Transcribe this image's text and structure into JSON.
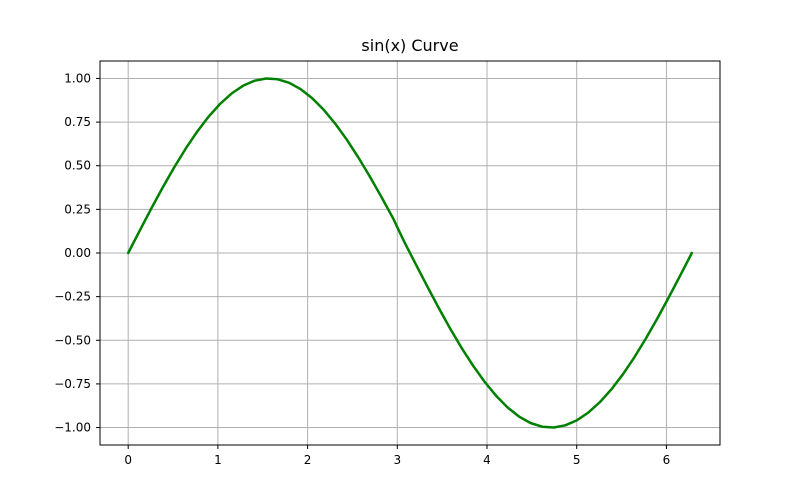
{
  "chart_data": {
    "type": "line",
    "title": "sin(x) Curve",
    "xlabel": "",
    "ylabel": "",
    "xlim": [
      -0.3142,
      6.5973
    ],
    "ylim": [
      -1.1,
      1.1
    ],
    "grid": true,
    "x_ticks": [
      0,
      1,
      2,
      3,
      4,
      5,
      6
    ],
    "x_tick_labels": [
      "0",
      "1",
      "2",
      "3",
      "4",
      "5",
      "6"
    ],
    "y_ticks": [
      1.0,
      0.75,
      0.5,
      0.25,
      0.0,
      -0.25,
      -0.5,
      -0.75,
      -1.0
    ],
    "y_tick_labels": [
      "1.00",
      "0.75",
      "0.50",
      "0.25",
      "0.00",
      "−0.25",
      "−0.50",
      "−0.75",
      "−1.00"
    ],
    "line_color": "#008000",
    "grid_color": "#b0b0b0",
    "axis_color": "#000000",
    "series": [
      {
        "x": [
          0,
          0.1282,
          0.2565,
          0.3847,
          0.5129,
          0.6411,
          0.7694,
          0.8976,
          1.0258,
          1.1541,
          1.2823,
          1.4105,
          1.5387,
          1.667,
          1.7952,
          1.9234,
          2.0517,
          2.1799,
          2.3081,
          2.4363,
          2.5646,
          2.6928,
          2.821,
          2.9493,
          3.0775,
          3.2057,
          3.3339,
          3.4622,
          3.5904,
          3.7186,
          3.8468,
          3.9751,
          4.1033,
          4.2315,
          4.3598,
          4.488,
          4.6162,
          4.7444,
          4.8727,
          5.0009,
          5.1291,
          5.2574,
          5.3856,
          5.5138,
          5.642,
          5.7703,
          5.8985,
          6.0267,
          6.155,
          6.2832
        ],
        "y": [
          0,
          0.1279,
          0.2537,
          0.3753,
          0.4907,
          0.5981,
          0.6957,
          0.7818,
          0.8551,
          0.9144,
          0.9587,
          0.9872,
          0.9995,
          0.9954,
          0.9749,
          0.9384,
          0.8866,
          0.8204,
          0.741,
          0.6498,
          0.5485,
          0.4388,
          0.3228,
          0.2026,
          0.064,
          -0.064,
          -0.1911,
          -0.3151,
          -0.4342,
          -0.5451,
          -0.6471,
          -0.739,
          -0.819,
          -0.8857,
          -0.9381,
          -0.9747,
          -0.9953,
          -0.9995,
          -0.9872,
          -0.9587,
          -0.9144,
          -0.8551,
          -0.7818,
          -0.6957,
          -0.5981,
          -0.4907,
          -0.3753,
          -0.2537,
          -0.1279,
          0
        ]
      }
    ]
  }
}
